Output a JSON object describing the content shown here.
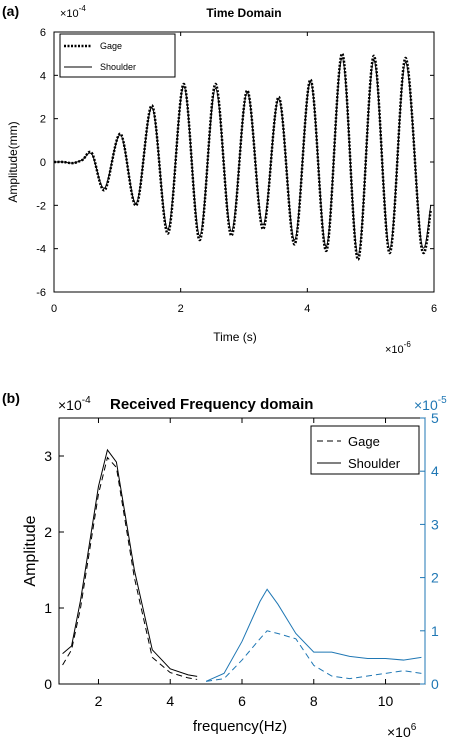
{
  "panels": {
    "a": {
      "label": "(a)"
    },
    "b": {
      "label": "(b)"
    }
  },
  "chart_data": [
    {
      "type": "line",
      "title": "Time Domain",
      "xlabel": "Time (s)",
      "ylabel": "Amplitude(mm)",
      "x_multiplier": "10",
      "x_exponent": "-6",
      "y_multiplier": "10",
      "y_exponent": "-4",
      "xlim": [
        0,
        6
      ],
      "ylim": [
        -6,
        6
      ],
      "xticks": [
        0,
        2,
        4,
        6
      ],
      "yticks": [
        -6,
        -4,
        -2,
        0,
        2,
        4,
        6
      ],
      "legend": {
        "position": "top-left",
        "entries": [
          "Gage",
          "Shoulder"
        ]
      },
      "grid": false,
      "series": [
        {
          "name": "Gage",
          "style": "dotted",
          "color": "#000000",
          "x": [
            0,
            0.15,
            0.3,
            0.45,
            0.6,
            0.8,
            1.05,
            1.3,
            1.55,
            1.8,
            2.05,
            2.3,
            2.55,
            2.8,
            3.05,
            3.3,
            3.55,
            3.8,
            4.05,
            4.3,
            4.55,
            4.8,
            5.05,
            5.3,
            5.55,
            5.8,
            5.95
          ],
          "values": [
            0,
            0,
            -0.05,
            0.1,
            0.4,
            -1.3,
            1.3,
            -2.0,
            2.6,
            -3.3,
            3.6,
            -3.6,
            3.6,
            -3.4,
            3.3,
            -3.1,
            3.0,
            -3.8,
            3.8,
            -4.1,
            5.0,
            -4.5,
            4.9,
            -4.2,
            4.8,
            -3.9,
            -2.2
          ]
        },
        {
          "name": "Shoulder",
          "style": "solid",
          "color": "#000000",
          "x": [
            0,
            0.15,
            0.3,
            0.45,
            0.6,
            0.8,
            1.05,
            1.3,
            1.55,
            1.8,
            2.05,
            2.3,
            2.55,
            2.8,
            3.05,
            3.3,
            3.55,
            3.8,
            4.05,
            4.3,
            4.55,
            4.8,
            5.05,
            5.3,
            5.55,
            5.8,
            5.95
          ],
          "values": [
            0,
            0,
            -0.05,
            0.1,
            0.35,
            -1.2,
            1.25,
            -1.9,
            2.5,
            -3.1,
            3.5,
            -3.4,
            3.4,
            -3.2,
            3.2,
            -2.9,
            2.9,
            -3.6,
            3.7,
            -3.9,
            4.8,
            -4.3,
            4.7,
            -4.0,
            4.6,
            -3.7,
            -2.0
          ]
        }
      ]
    },
    {
      "type": "line",
      "title": "Received Frequency domain",
      "xlabel": "frequency(Hz)",
      "ylabel": "Amplitude",
      "x_multiplier": "10",
      "x_exponent": "6",
      "y_left_multiplier": "10",
      "y_left_exponent": "-4",
      "y_right_multiplier": "10",
      "y_right_exponent": "-5",
      "xlim": [
        0.9,
        11.1
      ],
      "ylim_left": [
        0,
        3.5
      ],
      "ylim_right": [
        0,
        5
      ],
      "xticks": [
        2,
        4,
        6,
        8,
        10
      ],
      "yticks_left": [
        0,
        1,
        2,
        3
      ],
      "yticks_right": [
        0,
        1,
        2,
        3,
        4,
        5
      ],
      "right_axis_color": "#1f77b4",
      "legend": {
        "position": "top-right",
        "entries": [
          "Gage",
          "Shoulder"
        ]
      },
      "grid": false,
      "series": [
        {
          "name": "Gage",
          "axis": "left",
          "style": "dashed",
          "color": "#000000",
          "x": [
            1.0,
            1.25,
            1.5,
            2.0,
            2.25,
            2.5,
            3.0,
            3.5,
            4.0,
            4.5,
            4.75
          ],
          "values": [
            0.25,
            0.45,
            1.0,
            2.5,
            2.98,
            2.85,
            1.4,
            0.35,
            0.15,
            0.08,
            0.06
          ]
        },
        {
          "name": "Shoulder",
          "axis": "left",
          "style": "solid",
          "color": "#000000",
          "x": [
            1.0,
            1.25,
            1.5,
            2.0,
            2.25,
            2.5,
            3.0,
            3.5,
            4.0,
            4.5,
            4.75
          ],
          "values": [
            0.4,
            0.5,
            1.1,
            2.6,
            3.08,
            2.92,
            1.5,
            0.45,
            0.2,
            0.12,
            0.1
          ]
        },
        {
          "name": "Gage",
          "axis": "right",
          "style": "dashed",
          "color": "#1f77b4",
          "x": [
            5.0,
            5.5,
            6.0,
            6.5,
            6.7,
            7.0,
            7.5,
            8.0,
            8.5,
            9.0,
            9.5,
            10.0,
            10.5,
            11.0
          ],
          "values": [
            0.05,
            0.1,
            0.45,
            0.85,
            1.0,
            0.95,
            0.85,
            0.35,
            0.15,
            0.1,
            0.15,
            0.2,
            0.25,
            0.2
          ]
        },
        {
          "name": "Shoulder",
          "axis": "right",
          "style": "solid",
          "color": "#1f77b4",
          "x": [
            5.0,
            5.5,
            6.0,
            6.5,
            6.7,
            7.0,
            7.5,
            8.0,
            8.5,
            9.0,
            9.5,
            10.0,
            10.5,
            11.0
          ],
          "values": [
            0.05,
            0.2,
            0.8,
            1.55,
            1.78,
            1.5,
            0.95,
            0.6,
            0.6,
            0.52,
            0.48,
            0.48,
            0.45,
            0.5
          ]
        }
      ]
    }
  ]
}
